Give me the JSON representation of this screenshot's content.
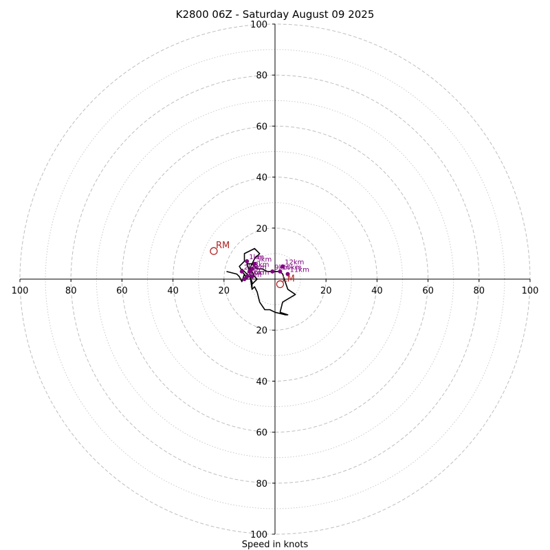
{
  "chart_data": {
    "type": "hodograph",
    "title": "K2800 06Z - Saturday August 09 2025",
    "xlabel": "Speed in knots",
    "ylabel": "",
    "xlim": [
      -100,
      100
    ],
    "ylim": [
      -100,
      100
    ],
    "rings_major": [
      20,
      40,
      60,
      80,
      100
    ],
    "rings_minor": [
      10,
      30,
      50,
      70,
      90
    ],
    "x_ticks": [
      {
        "value": -100,
        "label": "100"
      },
      {
        "value": -80,
        "label": "80"
      },
      {
        "value": -60,
        "label": "60"
      },
      {
        "value": -40,
        "label": "40"
      },
      {
        "value": -20,
        "label": "20"
      },
      {
        "value": 20,
        "label": "20"
      },
      {
        "value": 40,
        "label": "40"
      },
      {
        "value": 60,
        "label": "60"
      },
      {
        "value": 80,
        "label": "80"
      },
      {
        "value": 100,
        "label": "100"
      }
    ],
    "y_ticks": [
      {
        "value": 100,
        "label": "100"
      },
      {
        "value": 80,
        "label": "80"
      },
      {
        "value": 60,
        "label": "60"
      },
      {
        "value": 40,
        "label": "40"
      },
      {
        "value": 20,
        "label": "20"
      },
      {
        "value": -20,
        "label": "20"
      },
      {
        "value": -40,
        "label": "40"
      },
      {
        "value": -60,
        "label": "60"
      },
      {
        "value": -80,
        "label": "80"
      },
      {
        "value": -100,
        "label": "100"
      }
    ],
    "grid": true,
    "trace": {
      "color": "#000000",
      "points": [
        [
          -19,
          3
        ],
        [
          -15,
          2
        ],
        [
          -14,
          1
        ],
        [
          -13,
          -1
        ],
        [
          -12,
          2
        ],
        [
          -11,
          0
        ],
        [
          -14,
          5
        ],
        [
          -12,
          7
        ],
        [
          -12,
          10
        ],
        [
          -8,
          12
        ],
        [
          -6,
          10
        ],
        [
          -8,
          8
        ],
        [
          -10,
          4
        ],
        [
          -9,
          3
        ],
        [
          -8,
          1
        ],
        [
          -7,
          0
        ],
        [
          -9,
          -2
        ],
        [
          -9,
          -4
        ],
        [
          -10,
          3
        ],
        [
          -11,
          6
        ],
        [
          -9,
          6
        ],
        [
          -7,
          4
        ],
        [
          -5,
          4
        ],
        [
          -3,
          3
        ],
        [
          0,
          3
        ],
        [
          2,
          3
        ],
        [
          3,
          2
        ],
        [
          4,
          -1
        ],
        [
          5,
          -4
        ],
        [
          8,
          -6
        ],
        [
          3,
          -9
        ],
        [
          2,
          -13
        ],
        [
          5,
          -14
        ],
        [
          4,
          -14
        ],
        [
          0,
          -13
        ],
        [
          -2,
          -12
        ],
        [
          -4,
          -12
        ],
        [
          -6,
          -9
        ],
        [
          -7,
          -5
        ],
        [
          -8,
          -3
        ],
        [
          -9,
          -4
        ],
        [
          -9,
          -1
        ],
        [
          -10,
          1
        ],
        [
          -12,
          3
        ],
        [
          -13,
          4
        ]
      ]
    },
    "height_markers": {
      "color": "#800080",
      "points": [
        {
          "u": -11,
          "v": 7,
          "label": "1km"
        },
        {
          "u": -13,
          "v": 3,
          "label": "2km"
        },
        {
          "u": -9,
          "v": 4,
          "label": "3km"
        },
        {
          "u": -10,
          "v": 3,
          "label": "4km"
        },
        {
          "u": -8,
          "v": 6,
          "label": "5km"
        },
        {
          "u": -9,
          "v": 1,
          "label": "6km"
        },
        {
          "u": -11,
          "v": 1,
          "label": "7km"
        },
        {
          "u": -12,
          "v": 0,
          "label": "8km"
        },
        {
          "u": -1,
          "v": 3,
          "label": "9km"
        },
        {
          "u": 2,
          "v": 3,
          "label": "10km"
        },
        {
          "u": 5,
          "v": 2,
          "label": "11km"
        },
        {
          "u": 3,
          "v": 5,
          "label": "12km"
        }
      ]
    },
    "storm_motion": [
      {
        "u": -24,
        "v": 11,
        "label": "RM",
        "color": "#b22222"
      },
      {
        "u": 2,
        "v": -2,
        "label": "LM",
        "color": "#b22222"
      }
    ]
  }
}
